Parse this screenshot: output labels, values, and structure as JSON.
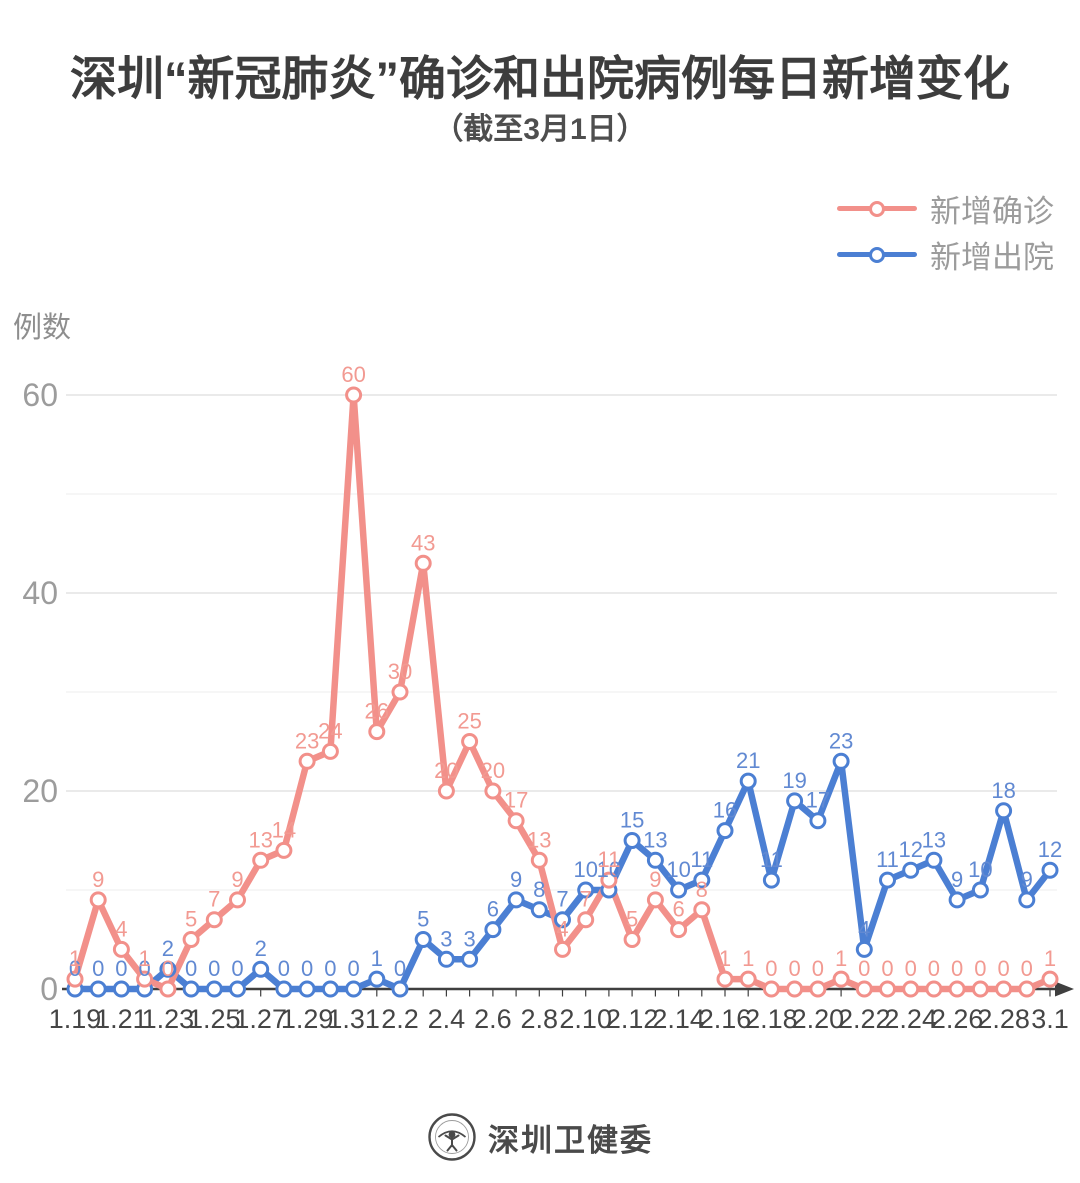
{
  "header": {
    "title": "深圳“新冠肺炎”确诊和出院病例每日新增变化",
    "subtitle": "（截至3月1日）"
  },
  "footer": {
    "source_name": "深圳卫健委",
    "logo": "shenzhen-health-commission-emblem"
  },
  "chart_data": {
    "type": "line",
    "title": "深圳“新冠肺炎”确诊和出院病例每日新增变化（截至3月1日）",
    "xlabel": "",
    "ylabel": "例数",
    "ylim": [
      0,
      60
    ],
    "y_ticks": [
      0,
      20,
      40,
      60
    ],
    "grid": "horizontal every 10, light gray",
    "legend_position": "top-right",
    "data_labels": true,
    "categories": [
      "1.19",
      "1.20",
      "1.21",
      "1.22",
      "1.23",
      "1.24",
      "1.25",
      "1.26",
      "1.27",
      "1.28",
      "1.29",
      "1.30",
      "1.31",
      "2.1",
      "2.2",
      "2.3",
      "2.4",
      "2.5",
      "2.6",
      "2.7",
      "2.8",
      "2.9",
      "2.10",
      "2.11",
      "2.12",
      "2.13",
      "2.14",
      "2.15",
      "2.16",
      "2.17",
      "2.18",
      "2.19",
      "2.20",
      "2.21",
      "2.22",
      "2.23",
      "2.24",
      "2.25",
      "2.26",
      "2.27",
      "2.28",
      "2.29",
      "3.1"
    ],
    "x_tick_labels": [
      "1.19",
      "1.21",
      "1.23",
      "1.25",
      "1.27",
      "1.29",
      "1.31",
      "2.2",
      "2.4",
      "2.6",
      "2.8",
      "2.10",
      "2.12",
      "2.14",
      "2.16",
      "2.18",
      "2.20",
      "2.22",
      "2.24",
      "2.26",
      "2.28",
      "3.1"
    ],
    "series": [
      {
        "key": "confirmed",
        "name": "新增确诊",
        "color": "#F2908A",
        "label_color": "#F29A92",
        "values": [
          1,
          9,
          4,
          1,
          0,
          5,
          7,
          9,
          13,
          14,
          23,
          24,
          60,
          26,
          30,
          43,
          20,
          25,
          20,
          17,
          13,
          4,
          7,
          11,
          5,
          9,
          6,
          8,
          1,
          1,
          0,
          0,
          0,
          1,
          0,
          0,
          0,
          0,
          0,
          0,
          0,
          0,
          1
        ]
      },
      {
        "key": "discharged",
        "name": "新增出院",
        "color": "#4B7FD3",
        "label_color": "#6189D2",
        "values": [
          0,
          0,
          0,
          0,
          2,
          0,
          0,
          0,
          2,
          0,
          0,
          0,
          0,
          1,
          0,
          5,
          3,
          3,
          6,
          9,
          8,
          7,
          10,
          10,
          15,
          13,
          10,
          11,
          16,
          21,
          11,
          19,
          17,
          23,
          4,
          11,
          12,
          13,
          9,
          10,
          18,
          9,
          12
        ]
      }
    ],
    "axis_color": "#3f3f3f",
    "tick_label_color": "#454545",
    "y_label_color": "#9c9c9c"
  }
}
